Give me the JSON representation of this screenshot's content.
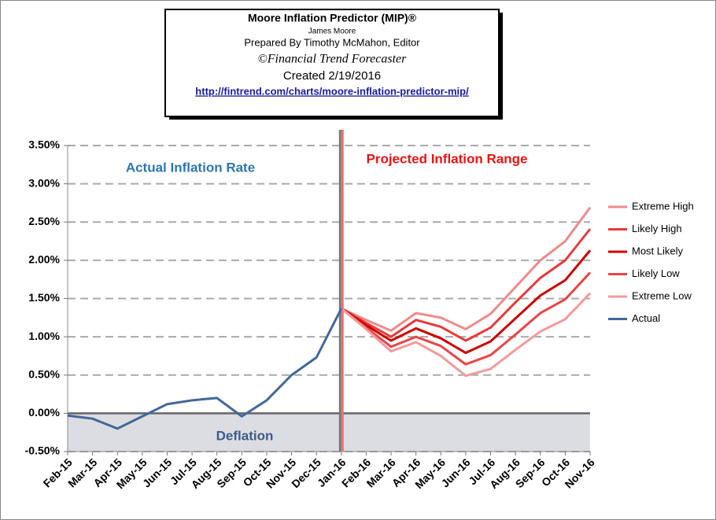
{
  "chart_data": {
    "type": "line",
    "title": "Moore Inflation Predictor (MIP)®",
    "author": "James Moore",
    "prepared_by": "Prepared  By Timothy McMahon, Editor",
    "copyright": "©Financial Trend Forecaster",
    "created": "Created  2/19/2016",
    "url": "http://fintrend.com/charts/moore-inflation-predictor-mip/",
    "annotations": [
      "Actual Inflation Rate",
      "Projected Inflation Range",
      "Deflation"
    ],
    "categories": [
      "Feb-15",
      "Mar-15",
      "Apr-15",
      "May-15",
      "Jun-15",
      "Jul-15",
      "Aug-15",
      "Sep-15",
      "Oct-15",
      "Nov-15",
      "Dec-15",
      "Jan-16",
      "Feb-16",
      "Mar-16",
      "Apr-16",
      "May-16",
      "Jun-16",
      "Jul-16",
      "Aug-16",
      "Sep-16",
      "Oct-16",
      "Nov-16"
    ],
    "series": [
      {
        "name": "Extreme High",
        "color": "#f08a8a",
        "values": [
          null,
          null,
          null,
          null,
          null,
          null,
          null,
          null,
          null,
          null,
          null,
          1.37,
          1.22,
          1.08,
          1.31,
          1.25,
          1.1,
          1.3,
          1.65,
          2.0,
          2.25,
          2.69
        ]
      },
      {
        "name": "Likely High",
        "color": "#e83a3a",
        "values": [
          null,
          null,
          null,
          null,
          null,
          null,
          null,
          null,
          null,
          null,
          null,
          1.37,
          1.18,
          1.0,
          1.22,
          1.13,
          0.95,
          1.12,
          1.45,
          1.77,
          2.0,
          2.41
        ]
      },
      {
        "name": "Most Likely",
        "color": "#cc0000",
        "values": [
          null,
          null,
          null,
          null,
          null,
          null,
          null,
          null,
          null,
          null,
          null,
          1.37,
          1.15,
          0.95,
          1.11,
          0.98,
          0.79,
          0.94,
          1.24,
          1.54,
          1.74,
          2.13
        ]
      },
      {
        "name": "Likely Low",
        "color": "#e84545",
        "values": [
          null,
          null,
          null,
          null,
          null,
          null,
          null,
          null,
          null,
          null,
          null,
          1.37,
          1.12,
          0.87,
          1.0,
          0.88,
          0.64,
          0.76,
          1.03,
          1.31,
          1.49,
          1.84
        ]
      },
      {
        "name": "Extreme Low",
        "color": "#f29a9a",
        "values": [
          null,
          null,
          null,
          null,
          null,
          null,
          null,
          null,
          null,
          null,
          null,
          1.37,
          1.1,
          0.81,
          0.93,
          0.75,
          0.49,
          0.58,
          0.83,
          1.07,
          1.23,
          1.57
        ]
      },
      {
        "name": "Actual",
        "color": "#41689a",
        "values": [
          -0.03,
          -0.07,
          -0.2,
          -0.04,
          0.12,
          0.17,
          0.2,
          -0.04,
          0.17,
          0.5,
          0.73,
          1.37,
          null,
          null,
          null,
          null,
          null,
          null,
          null,
          null,
          null,
          null
        ]
      }
    ],
    "ylim": [
      -0.5,
      3.5
    ],
    "yticks": [
      {
        "value": -0.5,
        "label": "-0.50%"
      },
      {
        "value": 0,
        "label": "0.00%"
      },
      {
        "value": 0.5,
        "label": "0.50%"
      },
      {
        "value": 1,
        "label": "1.00%"
      },
      {
        "value": 1.5,
        "label": "1.50%"
      },
      {
        "value": 2,
        "label": "2.00%"
      },
      {
        "value": 2.5,
        "label": "2.50%"
      },
      {
        "value": 3,
        "label": "3.00%"
      },
      {
        "value": 3.5,
        "label": "3.50%"
      }
    ],
    "grid": true,
    "legend": "right"
  }
}
